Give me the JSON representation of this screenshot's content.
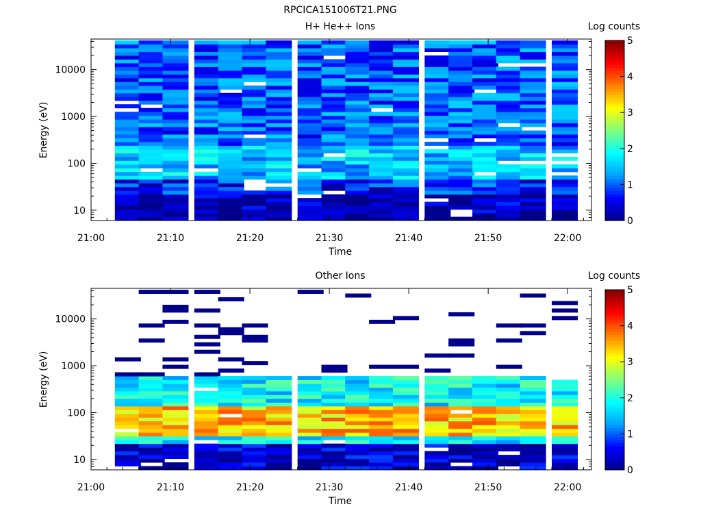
{
  "figure": {
    "title": "RPCICA151006T21.PNG"
  },
  "colorscale": {
    "stops": [
      "#00008b",
      "#0000ff",
      "#00a0ff",
      "#00ffff",
      "#80ff80",
      "#ffff00",
      "#ff8000",
      "#ff0000",
      "#800000"
    ]
  },
  "chart_data": [
    {
      "type": "heatmap",
      "title": "H+ He++ Ions",
      "xlabel": "Time",
      "ylabel": "Energy (eV)",
      "y_scale": "log",
      "xlim": [
        "21:00",
        "22:03"
      ],
      "ylim": [
        6,
        45000
      ],
      "xticks": [
        "21:00",
        "21:10",
        "21:20",
        "21:30",
        "21:40",
        "21:50",
        "22:00"
      ],
      "yticks": [
        "10",
        "100",
        "1000",
        "10000"
      ],
      "colorbar": {
        "label": "Log counts",
        "range": [
          0,
          5
        ],
        "ticks": [
          "0",
          "1",
          "2",
          "3",
          "4",
          "5"
        ]
      },
      "time_bins": [
        "21:03",
        "21:06",
        "21:09",
        "21:13",
        "21:16",
        "21:19",
        "21:22",
        "21:26",
        "21:29",
        "21:32",
        "21:35",
        "21:38",
        "21:42",
        "21:45",
        "21:48",
        "21:51",
        "21:54",
        "21:58"
      ],
      "energy_range_ev": [
        6,
        42000
      ],
      "energy_bins": 48,
      "profile": [
        {
          "max_energy_ev": 20,
          "log_counts": 0.2
        },
        {
          "max_energy_ev": 45,
          "log_counts": 0.7
        },
        {
          "max_energy_ev": 250,
          "log_counts": 1.5
        },
        {
          "max_energy_ev": 42000,
          "log_counts": 1.0
        }
      ]
    },
    {
      "type": "heatmap",
      "title": "Other Ions",
      "xlabel": "Time",
      "ylabel": "Energy (eV)",
      "y_scale": "log",
      "xlim": [
        "21:00",
        "22:03"
      ],
      "ylim": [
        6,
        45000
      ],
      "xticks": [
        "21:00",
        "21:10",
        "21:20",
        "21:30",
        "21:40",
        "21:50",
        "22:00"
      ],
      "yticks": [
        "10",
        "100",
        "1000",
        "10000"
      ],
      "colorbar": {
        "label": "Log counts",
        "range": [
          0,
          5
        ],
        "ticks": [
          "0",
          "1",
          "2",
          "3",
          "4",
          "5"
        ]
      },
      "time_bins": [
        "21:03",
        "21:06",
        "21:09",
        "21:13",
        "21:16",
        "21:19",
        "21:22",
        "21:26",
        "21:29",
        "21:32",
        "21:35",
        "21:38",
        "21:42",
        "21:45",
        "21:48",
        "21:51",
        "21:54",
        "21:58"
      ],
      "energy_range_ev": [
        6,
        42000
      ],
      "energy_bins": 48,
      "profile": [
        {
          "max_energy_ev": 20,
          "log_counts": 0.3
        },
        {
          "max_energy_ev": 30,
          "log_counts": 1.8
        },
        {
          "max_energy_ev": 150,
          "log_counts": 3.4
        },
        {
          "max_energy_ev": 600,
          "log_counts": 1.8
        },
        {
          "max_energy_ev": 42000,
          "log_counts": -1
        }
      ],
      "sparse_high_energy_counts_log": 0
    }
  ]
}
